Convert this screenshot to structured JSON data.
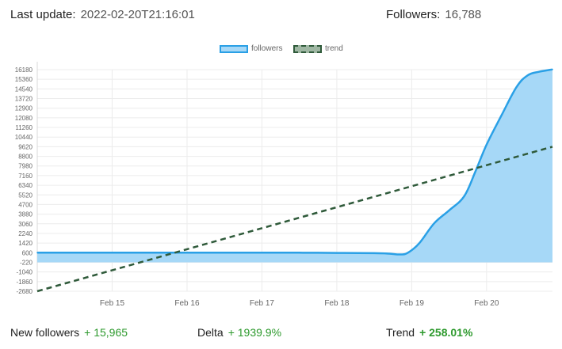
{
  "header": {
    "last_update_label": "Last update:",
    "last_update_value": "2022-02-20T21:16:01",
    "followers_label": "Followers:",
    "followers_value": "16,788"
  },
  "footer": {
    "new_followers_label": "New followers",
    "new_followers_value": "+ 15,965",
    "delta_label": "Delta",
    "delta_value": "+ 1939.9%",
    "trend_label": "Trend",
    "trend_value": "+ 258.01%"
  },
  "chart_data": {
    "type": "area",
    "title": "",
    "xlabel": "",
    "ylabel": "",
    "ylim": [
      -2680,
      16180
    ],
    "y_ticks": [
      16180,
      15360,
      14540,
      13720,
      12900,
      12080,
      11260,
      10440,
      9620,
      8800,
      7980,
      7160,
      6340,
      5520,
      4700,
      3880,
      3060,
      2240,
      1420,
      600,
      -220,
      -1040,
      -1860,
      -2680
    ],
    "x_ticks": [
      "Feb 15",
      "Feb 16",
      "Feb 17",
      "Feb 18",
      "Feb 19",
      "Feb 20"
    ],
    "x_tick_values": [
      15,
      16,
      17,
      18,
      19,
      20
    ],
    "xlim": [
      14.0,
      20.88
    ],
    "legend_position": "top-center",
    "grid": true,
    "series": [
      {
        "name": "followers",
        "color": "#2aa0e6",
        "fill": "#a6d8f7",
        "x": [
          14.0,
          14.5,
          15.0,
          15.5,
          16.0,
          16.5,
          17.0,
          17.5,
          18.0,
          18.5,
          18.7,
          18.85,
          18.95,
          19.1,
          19.3,
          19.5,
          19.7,
          19.85,
          20.0,
          20.2,
          20.4,
          20.55,
          20.7,
          20.88
        ],
        "values": [
          600,
          600,
          600,
          600,
          600,
          600,
          600,
          600,
          580,
          560,
          520,
          450,
          600,
          1400,
          3100,
          4200,
          5400,
          7500,
          9800,
          12300,
          14700,
          15700,
          16000,
          16200
        ]
      },
      {
        "name": "trend",
        "color": "#2f5a3a",
        "dashed": true,
        "x": [
          14.0,
          20.88
        ],
        "values": [
          -2680,
          9620
        ]
      }
    ]
  }
}
